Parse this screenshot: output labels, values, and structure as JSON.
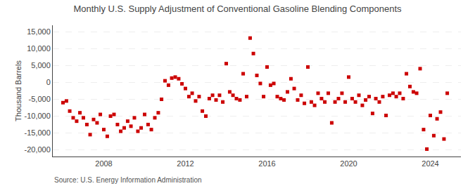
{
  "chart_data": {
    "type": "scatter",
    "title": "Monthly U.S. Supply Adjustment of Conventional Gasoline Blending Components",
    "ylabel": "Thousand Barrels",
    "annotations": [
      "Source: U.S. Energy Information Administration"
    ],
    "color": "#cc0000",
    "marker": "square",
    "grid": true,
    "xlim": [
      2005.5,
      2025.5
    ],
    "xticks": [
      2008,
      2012,
      2016,
      2020,
      2024
    ],
    "ylim": [
      -22000,
      17000
    ],
    "yticks": [
      {
        "value": -20000,
        "label": "-20,000"
      },
      {
        "value": -15000,
        "label": "-15,000"
      },
      {
        "value": -10000,
        "label": "-10,000"
      },
      {
        "value": -5000,
        "label": "-5,000"
      },
      0,
      {
        "value": 5000,
        "label": "5,000"
      },
      {
        "value": 10000,
        "label": "10,000"
      },
      {
        "value": 15000,
        "label": "15,000"
      }
    ],
    "x": [
      2006.0,
      2006.17,
      2006.33,
      2006.5,
      2006.67,
      2006.83,
      2007.0,
      2007.17,
      2007.33,
      2007.5,
      2007.67,
      2007.83,
      2008.0,
      2008.17,
      2008.33,
      2008.5,
      2008.67,
      2008.83,
      2009.0,
      2009.17,
      2009.33,
      2009.5,
      2009.67,
      2009.83,
      2010.0,
      2010.17,
      2010.33,
      2010.5,
      2010.67,
      2010.83,
      2011.0,
      2011.17,
      2011.33,
      2011.5,
      2011.67,
      2011.83,
      2012.0,
      2012.17,
      2012.33,
      2012.5,
      2012.67,
      2012.83,
      2013.0,
      2013.17,
      2013.33,
      2013.5,
      2013.67,
      2013.83,
      2014.0,
      2014.17,
      2014.33,
      2014.5,
      2014.67,
      2014.83,
      2015.0,
      2015.17,
      2015.33,
      2015.5,
      2015.67,
      2015.83,
      2016.0,
      2016.17,
      2016.33,
      2016.5,
      2016.67,
      2016.83,
      2017.0,
      2017.17,
      2017.33,
      2017.5,
      2017.67,
      2017.83,
      2018.0,
      2018.17,
      2018.33,
      2018.5,
      2018.67,
      2018.83,
      2019.0,
      2019.17,
      2019.33,
      2019.5,
      2019.67,
      2019.83,
      2020.0,
      2020.17,
      2020.33,
      2020.5,
      2020.67,
      2020.83,
      2021.0,
      2021.17,
      2021.33,
      2021.5,
      2021.67,
      2021.83,
      2022.0,
      2022.17,
      2022.33,
      2022.5,
      2022.67,
      2022.83,
      2023.0,
      2023.17,
      2023.33,
      2023.5,
      2023.67,
      2023.83,
      2024.0,
      2024.17,
      2024.33,
      2024.5,
      2024.67,
      2024.83
    ],
    "values": [
      -6000,
      -5500,
      -8500,
      -10500,
      -11500,
      -9000,
      -10500,
      -12500,
      -15500,
      -11000,
      -12000,
      -9500,
      -14000,
      -16000,
      -10000,
      -9500,
      -12500,
      -14500,
      -13500,
      -11500,
      -13000,
      -10500,
      -14500,
      -13500,
      -9500,
      -12500,
      -14000,
      -10500,
      -9000,
      -5000,
      500,
      -800,
      1300,
      1600,
      1100,
      -400,
      -1800,
      -4200,
      -3200,
      -5500,
      -4200,
      -8500,
      -10000,
      -4800,
      -3800,
      -5200,
      -3800,
      -5800,
      5600,
      -2800,
      -3800,
      -4800,
      -5200,
      2600,
      -4200,
      13200,
      8600,
      2100,
      -300,
      -4200,
      4600,
      -800,
      -300,
      -4200,
      -4800,
      -5200,
      -2800,
      1100,
      -1800,
      -5200,
      -3800,
      -6200,
      4600,
      -5800,
      -6800,
      -3200,
      -4800,
      -5800,
      -3200,
      -12000,
      -5800,
      -4800,
      -3200,
      -5800,
      1600,
      -4800,
      -5800,
      -3800,
      -6800,
      -5200,
      -4200,
      -9200,
      -4800,
      -5800,
      -4200,
      -9800,
      -3800,
      -3200,
      -4200,
      -3200,
      -4800,
      2600,
      -1200,
      -2800,
      -3200,
      4100,
      -14000,
      -19800,
      -9800,
      -15800,
      -10800,
      -8800,
      -16800,
      -3200
    ]
  }
}
